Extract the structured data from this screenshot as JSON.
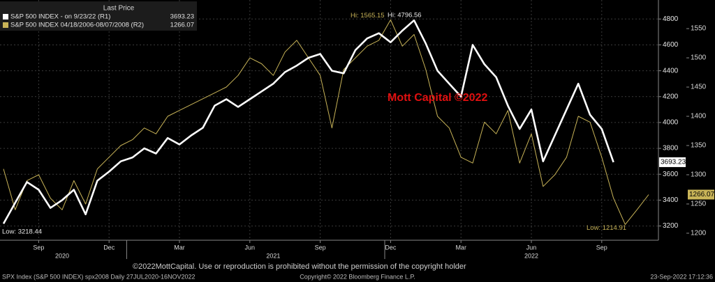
{
  "chart_data": {
    "type": "line",
    "legend_title": "Last Price",
    "watermark": "Mott Capital ©2022",
    "notice": "©2022MottCapital. Use or reproduction is prohibited without the permission of the copyright holder",
    "footer_left": "SPX Index (S&P 500 INDEX) spx2008  Daily 27JUL2020-16NOV2022",
    "footer_center": "Copyright© 2022 Bloomberg Finance L.P.",
    "footer_right": "23-Sep-2022 17:12:36",
    "categories": [
      null,
      null,
      null,
      "Sep",
      null,
      null,
      null,
      null,
      null,
      "Dec",
      null,
      null,
      null,
      null,
      null,
      "Mar",
      null,
      null,
      null,
      null,
      null,
      "Jun",
      null,
      null,
      null,
      null,
      null,
      "Sep",
      null,
      null,
      null,
      null,
      null,
      "Dec",
      null,
      null,
      null,
      null,
      null,
      "Mar",
      null,
      null,
      null,
      null,
      null,
      "Jun",
      null,
      null,
      null,
      null,
      null,
      "Sep",
      null,
      null,
      null,
      null
    ],
    "x_groups": [
      "2020",
      "2021",
      "2022"
    ],
    "series": [
      {
        "name": "S&P 500 INDEX -  on 9/23/22  (R1)",
        "color": "#ffffff",
        "axis": "y",
        "last_price": 3693.23,
        "values": [
          3218,
          3380,
          3540,
          3480,
          3340,
          3400,
          3480,
          3290,
          3550,
          3620,
          3700,
          3730,
          3800,
          3760,
          3880,
          3830,
          3900,
          3960,
          4130,
          4180,
          4120,
          4180,
          4240,
          4300,
          4390,
          4440,
          4500,
          4530,
          4400,
          4380,
          4560,
          4650,
          4690,
          4620,
          4710,
          4790,
          4610,
          4400,
          4300,
          4200,
          4600,
          4450,
          4350,
          4130,
          3950,
          4100,
          3700,
          3900,
          4100,
          4300,
          4060,
          3950,
          3693.23,
          null,
          null,
          null
        ]
      },
      {
        "name": "S&P 500 INDEX 04/18/2006-08/07/2008  (R2)",
        "color": "#c9b458",
        "axis": "y2",
        "last_price": 1266.07,
        "values": [
          1310,
          1240,
          1290,
          1300,
          1260,
          1240,
          1290,
          1250,
          1310,
          1330,
          1350,
          1360,
          1380,
          1370,
          1400,
          1410,
          1420,
          1430,
          1440,
          1450,
          1470,
          1500,
          1490,
          1470,
          1510,
          1530,
          1500,
          1470,
          1380,
          1480,
          1500,
          1520,
          1530,
          1565.15,
          1520,
          1540,
          1480,
          1400,
          1380,
          1330,
          1320,
          1390,
          1370,
          1410,
          1320,
          1370,
          1280,
          1300,
          1330,
          1400,
          1390,
          1330,
          1260,
          1214.91,
          1240,
          1266.07
        ]
      }
    ],
    "annotations": [
      {
        "label": "Low: 3218.44",
        "value": 3218.44,
        "axis": "y"
      },
      {
        "label": "Hi: 4796.56",
        "value": 4796.56,
        "axis": "y"
      },
      {
        "label": "Hi: 1565.15",
        "value": 1565.15,
        "axis": "y2"
      },
      {
        "label": "Low: 1214.91",
        "value": 1214.91,
        "axis": "y2"
      }
    ],
    "ylim": [
      3090,
      4920
    ],
    "yticks": [
      3200,
      3400,
      3600,
      3800,
      4000,
      4200,
      4400,
      4600,
      4800
    ],
    "y2lim": [
      1188,
      1593
    ],
    "y2ticks": [
      1200,
      1250,
      1300,
      1350,
      1400,
      1450,
      1500,
      1550
    ],
    "grid": true
  }
}
